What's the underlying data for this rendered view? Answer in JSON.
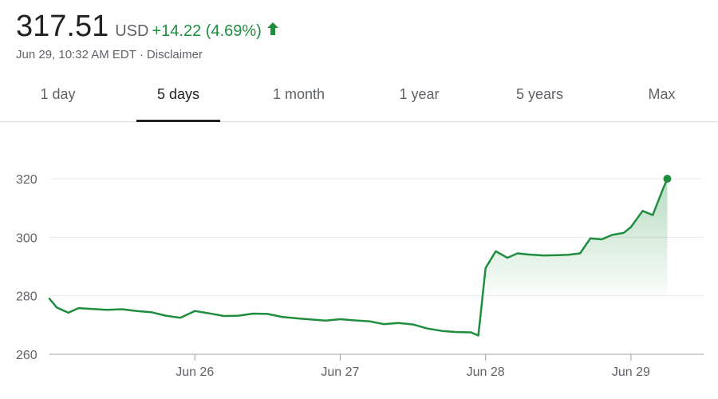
{
  "quote": {
    "price": "317.51",
    "currency": "USD",
    "change": "+14.22 (4.69%)",
    "trend_icon": "arrow-up-icon",
    "timestamp": "Jun 29, 10:32 AM EDT",
    "separator": "·",
    "disclaimer": "Disclaimer"
  },
  "tabs": [
    {
      "label": "1 day",
      "active": false
    },
    {
      "label": "5 days",
      "active": true
    },
    {
      "label": "1 month",
      "active": false
    },
    {
      "label": "1 year",
      "active": false
    },
    {
      "label": "5 years",
      "active": false
    },
    {
      "label": "Max",
      "active": false
    }
  ],
  "colors": {
    "line": "#1e8e3e",
    "positive_text": "#1e8e3e",
    "grid": "#e8eaed",
    "axis": "#9aa0a6"
  },
  "chart_data": {
    "type": "line",
    "title": "",
    "xlabel": "",
    "ylabel": "",
    "ylim": [
      260,
      325
    ],
    "yticks": [
      260,
      280,
      300,
      320
    ],
    "xticks": [
      {
        "label": "Jun 26",
        "x": 1
      },
      {
        "label": "Jun 27",
        "x": 2
      },
      {
        "label": "Jun 28",
        "x": 3
      },
      {
        "label": "Jun 29",
        "x": 4
      }
    ],
    "xlim": [
      0.0,
      4.5
    ],
    "grid": true,
    "series": [
      {
        "x": [
          0.0,
          0.05,
          0.13,
          0.2,
          0.3,
          0.4,
          0.5,
          0.6,
          0.7,
          0.8,
          0.9,
          1.0,
          1.1,
          1.2,
          1.3,
          1.4,
          1.5,
          1.6,
          1.7,
          1.8,
          1.9,
          2.0,
          2.1,
          2.2,
          2.3,
          2.4,
          2.5,
          2.6,
          2.7,
          2.8,
          2.9,
          2.95,
          3.0,
          3.07,
          3.15,
          3.22,
          3.3,
          3.4,
          3.5,
          3.57,
          3.65,
          3.72,
          3.8,
          3.87,
          3.95,
          4.0,
          4.08,
          4.15,
          4.22,
          4.25
        ],
        "values": [
          279,
          276,
          274.2,
          275.8,
          275.5,
          275.2,
          275.4,
          274.8,
          274.4,
          273.2,
          272.5,
          274.8,
          274.0,
          273.1,
          273.2,
          273.9,
          273.8,
          272.8,
          272.3,
          271.9,
          271.5,
          272.0,
          271.6,
          271.3,
          270.3,
          270.7,
          270.2,
          268.8,
          268.0,
          267.6,
          267.5,
          266.4,
          289.5,
          295.2,
          293.0,
          294.5,
          294.1,
          293.8,
          293.9,
          294.0,
          294.5,
          299.6,
          299.3,
          300.8,
          301.5,
          303.5,
          309.0,
          307.6,
          316.5,
          320.0
        ]
      }
    ]
  }
}
